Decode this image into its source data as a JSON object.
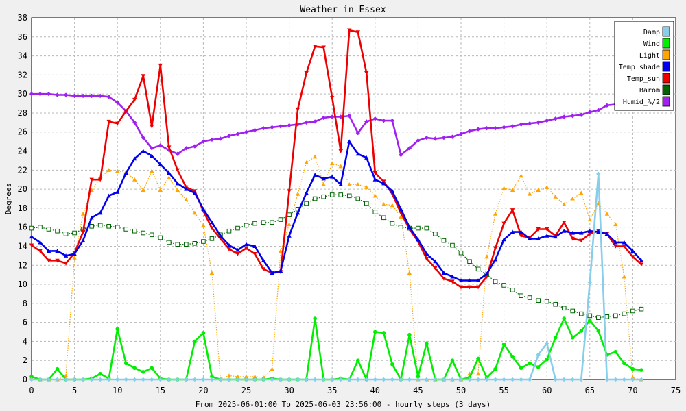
{
  "chart_data": {
    "type": "line",
    "title": "Weather in Essex",
    "xlabel": "From 2025-06-01:00 To 2025-06-03 23:56:00 - hourly steps (3 days)",
    "ylabel": "Degrees",
    "xlim": [
      0,
      75
    ],
    "ylim": [
      0,
      38
    ],
    "x_ticks": [
      0,
      5,
      10,
      15,
      20,
      25,
      30,
      35,
      40,
      45,
      50,
      55,
      60,
      65,
      70,
      75
    ],
    "y_ticks": [
      0,
      2,
      4,
      6,
      8,
      10,
      12,
      14,
      16,
      18,
      20,
      22,
      24,
      26,
      28,
      30,
      32,
      34,
      36,
      38
    ],
    "grid": true,
    "legend_position": "top-right",
    "series": [
      {
        "name": "Damp",
        "color": "#87ceeb",
        "style": "solid",
        "marker": "diamond",
        "values": [
          0,
          0,
          0,
          0,
          0,
          0,
          0,
          0,
          0,
          0,
          0,
          0,
          0,
          0,
          0,
          0,
          0,
          0,
          0,
          0,
          0,
          0,
          0,
          0,
          0,
          0,
          0,
          0,
          0,
          0,
          0,
          0,
          0,
          0,
          0,
          0,
          0,
          0,
          0,
          0,
          0,
          0,
          0,
          0,
          0,
          0,
          0,
          0,
          0,
          0,
          0,
          0,
          0,
          0,
          0,
          0,
          0,
          0,
          0,
          2.6,
          3.8,
          0,
          0,
          0,
          0,
          10.2,
          21.6,
          0,
          0,
          0,
          0,
          0
        ]
      },
      {
        "name": "Wind",
        "color": "#00ee00",
        "style": "solid",
        "marker": "circle",
        "values": [
          0.3,
          0,
          0,
          1.1,
          0,
          0,
          0,
          0.1,
          0.6,
          0.1,
          5.3,
          1.7,
          1.2,
          0.8,
          1.2,
          0.1,
          0,
          0,
          0,
          4.0,
          4.9,
          0.3,
          0,
          0,
          0,
          0,
          0,
          0,
          0.1,
          0,
          0,
          0,
          0,
          6.4,
          0,
          0,
          0.1,
          0,
          2.0,
          0,
          5.0,
          4.9,
          1.6,
          0,
          4.7,
          0.3,
          3.8,
          0,
          0,
          2.0,
          0,
          0.2,
          2.2,
          0.2,
          1.1,
          3.7,
          2.4,
          1.2,
          1.7,
          1.3,
          2.1,
          4.4,
          6.4,
          4.4,
          5.1,
          6.2,
          5.1,
          2.6,
          2.9,
          1.7,
          1.1,
          1.0
        ]
      },
      {
        "name": "Light",
        "color": "#ffa500",
        "style": "dotted",
        "marker": "triangle",
        "values": [
          0.2,
          0,
          0,
          0,
          0.4,
          12.8,
          17.4,
          19.9,
          21.2,
          22.0,
          21.9,
          21.8,
          21.0,
          19.9,
          21.9,
          19.9,
          21.2,
          19.9,
          18.9,
          17.5,
          16.2,
          11.2,
          0.1,
          0.4,
          0.3,
          0.3,
          0.3,
          0.2,
          1.1,
          13.5,
          16.3,
          19.5,
          22.8,
          23.4,
          20.5,
          22.7,
          22.4,
          20.5,
          20.5,
          20.2,
          19.3,
          18.4,
          18.3,
          17.1,
          11.2,
          0,
          0,
          0,
          0,
          0,
          0,
          0.6,
          0.6,
          12.9,
          17.4,
          20.1,
          19.9,
          21.4,
          19.5,
          19.9,
          20.2,
          19.2,
          18.4,
          19.0,
          19.6,
          16.8,
          18.5,
          17.4,
          16.3,
          10.8,
          0.2,
          0
        ]
      },
      {
        "name": "Temp_shade",
        "color": "#0000ee",
        "style": "solid",
        "marker": "triangle",
        "values": [
          15.0,
          14.4,
          13.5,
          13.5,
          13.0,
          13.2,
          14.6,
          17.0,
          17.5,
          19.3,
          19.7,
          21.7,
          23.2,
          24.0,
          23.5,
          22.6,
          21.7,
          20.6,
          20.0,
          19.6,
          17.9,
          16.5,
          15.1,
          14.1,
          13.6,
          14.2,
          14.0,
          12.5,
          11.2,
          11.4,
          15.1,
          17.5,
          19.6,
          21.5,
          21.1,
          21.3,
          20.5,
          25.0,
          23.7,
          23.3,
          21.0,
          20.6,
          19.8,
          17.9,
          16.0,
          14.7,
          13.2,
          12.4,
          11.2,
          10.8,
          10.4,
          10.4,
          10.4,
          11.1,
          12.6,
          14.7,
          15.5,
          15.5,
          14.8,
          14.8,
          15.1,
          15.0,
          15.6,
          15.4,
          15.4,
          15.6,
          15.5,
          15.3,
          14.4,
          14.4,
          13.5,
          12.5
        ]
      },
      {
        "name": "Temp_sun",
        "color": "#ee0000",
        "style": "solid",
        "marker": "triangle-down",
        "values": [
          14.1,
          13.5,
          12.5,
          12.5,
          12.2,
          13.3,
          15.5,
          21.0,
          21.0,
          27.1,
          26.9,
          28.2,
          29.4,
          31.9,
          26.6,
          33.0,
          24.4,
          22.0,
          20.2,
          19.8,
          17.7,
          15.9,
          14.8,
          13.7,
          13.2,
          13.8,
          13.2,
          11.6,
          11.2,
          11.3,
          19.8,
          28.4,
          32.2,
          35.0,
          34.9,
          29.6,
          24.0,
          36.7,
          36.5,
          32.2,
          21.7,
          20.8,
          19.5,
          17.5,
          15.8,
          14.5,
          12.7,
          11.7,
          10.6,
          10.3,
          9.7,
          9.7,
          9.7,
          10.8,
          13.8,
          16.4,
          17.8,
          15.1,
          14.9,
          15.8,
          15.8,
          15.1,
          16.5,
          14.8,
          14.6,
          15.3,
          15.6,
          15.3,
          14.0,
          14.0,
          12.9,
          12.1
        ]
      },
      {
        "name": "Barom",
        "color": "#006400",
        "style": "dotted",
        "marker": "square-open",
        "values": [
          15.9,
          16.0,
          15.8,
          15.6,
          15.3,
          15.4,
          15.8,
          16.1,
          16.2,
          16.1,
          16.0,
          15.8,
          15.6,
          15.4,
          15.2,
          14.9,
          14.4,
          14.2,
          14.2,
          14.3,
          14.5,
          14.8,
          15.2,
          15.6,
          15.9,
          16.2,
          16.4,
          16.5,
          16.5,
          16.8,
          17.3,
          17.9,
          18.5,
          19.0,
          19.2,
          19.4,
          19.4,
          19.3,
          19.0,
          18.5,
          17.6,
          17.0,
          16.4,
          16.0,
          15.9,
          15.9,
          15.9,
          15.3,
          14.6,
          14.1,
          13.3,
          12.4,
          11.6,
          11.0,
          10.3,
          9.9,
          9.4,
          8.8,
          8.6,
          8.3,
          8.2,
          7.9,
          7.5,
          7.2,
          6.9,
          6.7,
          6.5,
          6.6,
          6.7,
          6.9,
          7.2,
          7.4
        ]
      },
      {
        "name": "Humid_%/2",
        "color": "#a020f0",
        "style": "solid",
        "marker": "diamond",
        "values": [
          30.0,
          30.0,
          30.0,
          29.9,
          29.9,
          29.8,
          29.8,
          29.8,
          29.8,
          29.7,
          29.1,
          28.2,
          27.0,
          25.4,
          24.3,
          24.6,
          24.1,
          23.7,
          24.3,
          24.5,
          25.0,
          25.2,
          25.3,
          25.6,
          25.8,
          26.0,
          26.2,
          26.4,
          26.5,
          26.6,
          26.7,
          26.8,
          27.0,
          27.1,
          27.5,
          27.6,
          27.6,
          27.7,
          25.9,
          27.1,
          27.4,
          27.2,
          27.2,
          23.6,
          24.3,
          25.1,
          25.4,
          25.3,
          25.4,
          25.5,
          25.8,
          26.1,
          26.3,
          26.4,
          26.4,
          26.5,
          26.6,
          26.8,
          26.9,
          27.0,
          27.2,
          27.4,
          27.6,
          27.7,
          27.8,
          28.1,
          28.3,
          28.8,
          28.9,
          28.9,
          28.8,
          28.7
        ]
      }
    ]
  }
}
